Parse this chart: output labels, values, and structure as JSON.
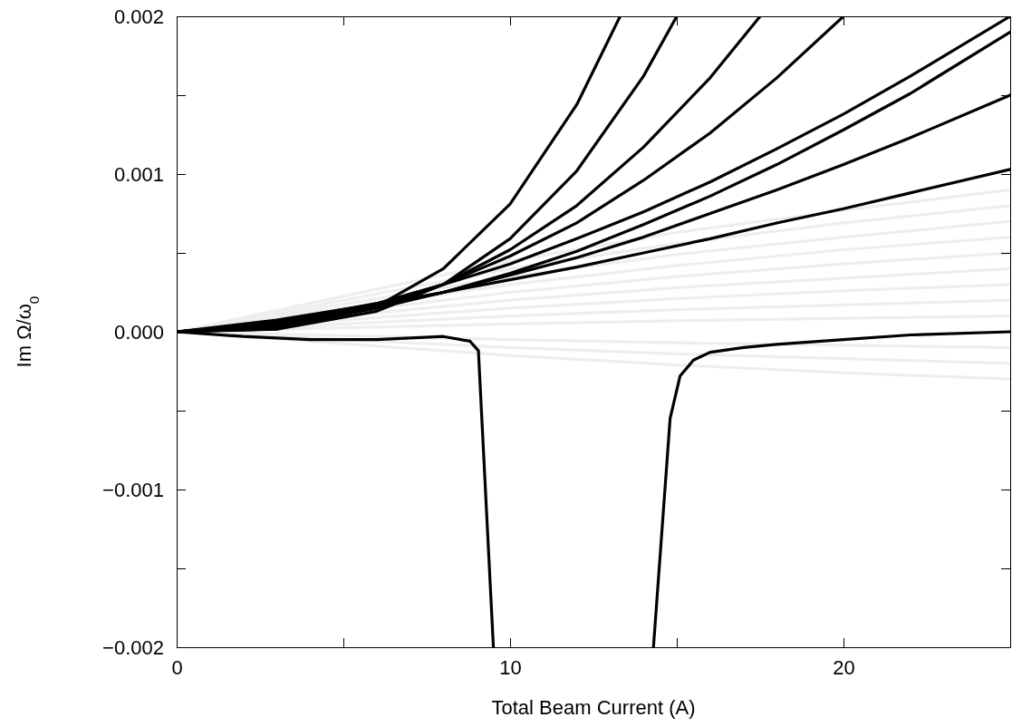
{
  "chart_data": {
    "type": "line",
    "xlabel": "Total Beam Current  (A)",
    "ylabel": "Im Ω/ω$_{0}$",
    "xlim": [
      0,
      25
    ],
    "ylim": [
      -0.002,
      0.002
    ],
    "xticks": [
      0,
      {
        "value": 5,
        "label": null
      },
      10,
      {
        "value": 15,
        "label": null
      },
      20,
      {
        "value": 25,
        "label": null
      }
    ],
    "yticks": [
      {
        "value": -0.002,
        "label": "−0.002"
      },
      {
        "value": -0.0015,
        "label": null
      },
      {
        "value": -0.001,
        "label": "−0.001"
      },
      {
        "value": -0.0005,
        "label": null
      },
      {
        "value": 0,
        "label": "0.000"
      },
      {
        "value": 0.0005,
        "label": null
      },
      0.001,
      {
        "value": 0.0015,
        "label": null
      },
      0.002
    ],
    "grid": false,
    "marker": "none",
    "line_style": "solid",
    "series": [
      {
        "color": "#eeeeee",
        "x": [
          0,
          5,
          10,
          15,
          20,
          25
        ],
        "values": [
          0,
          -7.5e-05,
          -0.00015,
          -0.00021,
          -0.00026,
          -0.0003
        ]
      },
      {
        "color": "#eeeeee",
        "x": [
          0,
          5,
          10,
          15,
          20,
          25
        ],
        "values": [
          0,
          -5e-05,
          -0.0001,
          -0.00014,
          -0.00017,
          -0.0002
        ]
      },
      {
        "color": "#eeeeee",
        "x": [
          0,
          5,
          10,
          15,
          20,
          25
        ],
        "values": [
          0,
          -2.5e-05,
          -5e-05,
          -7e-05,
          -8.6e-05,
          -0.0001
        ]
      },
      {
        "color": "#eeeeee",
        "x": [
          0,
          5,
          10,
          15,
          20,
          25
        ],
        "values": [
          0,
          2.5e-05,
          5e-05,
          7e-05,
          8.6e-05,
          0.0001
        ]
      },
      {
        "color": "#eeeeee",
        "x": [
          0,
          5,
          10,
          15,
          20,
          25
        ],
        "values": [
          0,
          5e-05,
          0.0001,
          0.00014,
          0.00017,
          0.0002
        ]
      },
      {
        "color": "#eeeeee",
        "x": [
          0,
          5,
          10,
          15,
          20,
          25
        ],
        "values": [
          0,
          7.5e-05,
          0.00015,
          0.00021,
          0.00026,
          0.0003
        ]
      },
      {
        "color": "#eeeeee",
        "x": [
          0,
          5,
          10,
          15,
          20,
          25
        ],
        "values": [
          0,
          0.0001,
          0.0002,
          0.00028,
          0.00034,
          0.0004
        ]
      },
      {
        "color": "#eeeeee",
        "x": [
          0,
          5,
          10,
          15,
          20,
          25
        ],
        "values": [
          0,
          0.000125,
          0.00025,
          0.00035,
          0.00043,
          0.0005
        ]
      },
      {
        "color": "#eeeeee",
        "x": [
          0,
          5,
          10,
          15,
          20,
          25
        ],
        "values": [
          0,
          0.00015,
          0.0003,
          0.00042,
          0.00052,
          0.0006
        ]
      },
      {
        "color": "#eeeeee",
        "x": [
          0,
          5,
          10,
          15,
          20,
          25
        ],
        "values": [
          0,
          0.000175,
          0.00035,
          0.00049,
          0.0006,
          0.0007
        ]
      },
      {
        "color": "#eeeeee",
        "x": [
          0,
          5,
          10,
          15,
          20,
          25
        ],
        "values": [
          0,
          0.0002,
          0.0004,
          0.00056,
          0.00069,
          0.0008
        ]
      },
      {
        "color": "#eeeeee",
        "x": [
          0,
          5,
          10,
          15,
          20,
          25
        ],
        "values": [
          0,
          0.000225,
          0.00045,
          0.00063,
          0.00077,
          0.0009
        ]
      },
      {
        "color": "#000000",
        "x": [
          0,
          3,
          6,
          8,
          10,
          12,
          13.3
        ],
        "values": [
          0,
          1.8e-05,
          0.00016,
          0.0004,
          0.00081,
          0.00144,
          0.002
        ]
      },
      {
        "color": "#000000",
        "x": [
          0,
          3,
          6,
          8,
          10,
          12,
          14,
          15
        ],
        "values": [
          0,
          1.6e-05,
          0.00013,
          0.0003,
          0.00059,
          0.00102,
          0.00162,
          0.002
        ]
      },
      {
        "color": "#000000",
        "x": [
          0,
          3,
          6,
          8,
          10,
          12,
          14,
          16,
          17.5
        ],
        "values": [
          0,
          2.8e-05,
          0.00015,
          0.0003,
          0.00052,
          0.0008,
          0.00117,
          0.00161,
          0.002
        ]
      },
      {
        "color": "#000000",
        "x": [
          0,
          3,
          6,
          8,
          10,
          12,
          14,
          16,
          18,
          20
        ],
        "values": [
          0,
          4e-05,
          0.00017,
          0.0003,
          0.00048,
          0.00069,
          0.00096,
          0.00126,
          0.00161,
          0.002
        ]
      },
      {
        "color": "#000000",
        "x": [
          0,
          3,
          6,
          8,
          10,
          12,
          14,
          16,
          18,
          20,
          22,
          25
        ],
        "values": [
          0,
          6e-05,
          0.00018,
          0.0003,
          0.00043,
          0.00059,
          0.00076,
          0.00095,
          0.00116,
          0.00138,
          0.00162,
          0.002
        ]
      },
      {
        "color": "#000000",
        "x": [
          0,
          3,
          6,
          8,
          10,
          12,
          14,
          16,
          18,
          20,
          22,
          25
        ],
        "values": [
          0,
          4.4e-05,
          0.00015,
          0.00025,
          0.00037,
          0.00051,
          0.00068,
          0.00086,
          0.00106,
          0.00128,
          0.00151,
          0.0019
        ]
      },
      {
        "color": "#000000",
        "x": [
          0,
          3,
          6,
          8,
          10,
          12,
          14,
          16,
          18,
          20,
          22,
          25
        ],
        "values": [
          0,
          5.4e-05,
          0.00016,
          0.00025,
          0.00036,
          0.00047,
          0.0006,
          0.00075,
          0.0009,
          0.00106,
          0.00123,
          0.0015
        ]
      },
      {
        "color": "#000000",
        "x": [
          0,
          3,
          6,
          8,
          10,
          12,
          14,
          16,
          18,
          20,
          22,
          25
        ],
        "values": [
          0,
          7.4e-05,
          0.000176,
          0.00025,
          0.00033,
          0.00041,
          0.0005,
          0.00059,
          0.00069,
          0.00078,
          0.00088,
          0.00103
        ]
      },
      {
        "color": "#000000",
        "x": [
          0,
          2,
          4,
          6,
          8,
          8.8,
          9.05,
          9.5
        ],
        "values": [
          0,
          -3e-05,
          -5e-05,
          -5e-05,
          -3e-05,
          -6e-05,
          -0.00012,
          -0.002
        ]
      },
      {
        "color": "#000000",
        "x": [
          14.3,
          14.8,
          15.1,
          15.5,
          16,
          17,
          18,
          20,
          22,
          25
        ],
        "values": [
          -0.002,
          -0.00055,
          -0.00028,
          -0.00018,
          -0.00013,
          -0.0001,
          -8e-05,
          -5e-05,
          -2e-05,
          0
        ]
      }
    ]
  }
}
